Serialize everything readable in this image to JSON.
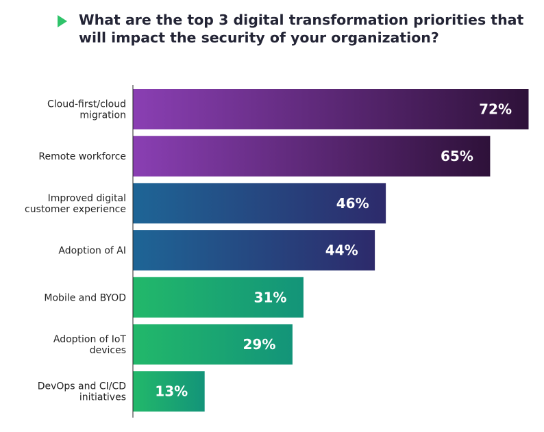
{
  "chart_data": {
    "type": "bar",
    "orientation": "horizontal",
    "title": "What are the top 3 digital transformation priorities that will impact the security of your organization?",
    "categories": [
      [
        "Cloud-first/cloud",
        "migration"
      ],
      [
        "Remote workforce"
      ],
      [
        "Improved digital",
        "customer experience"
      ],
      [
        "Adoption of AI"
      ],
      [
        "Mobile and BYOD"
      ],
      [
        "Adoption of IoT",
        "devices"
      ],
      [
        "DevOps and CI/CD",
        "initiatives"
      ]
    ],
    "values": [
      72,
      65,
      46,
      44,
      31,
      29,
      13
    ],
    "value_labels": [
      "72%",
      "65%",
      "46%",
      "44%",
      "31%",
      "29%",
      "13%"
    ],
    "xlim": [
      0,
      72
    ],
    "bar_colors": [
      [
        "#8a3fb3",
        "#2e1139"
      ],
      [
        "#8a3fb3",
        "#2e1139"
      ],
      [
        "#1e6596",
        "#2d2a6b"
      ],
      [
        "#1e6596",
        "#2d2a6b"
      ],
      [
        "#22b86a",
        "#139479"
      ],
      [
        "#22b86a",
        "#139479"
      ],
      [
        "#22b86a",
        "#139479"
      ]
    ],
    "icon": "play-triangle-icon",
    "accent_color": "#2fc36a"
  }
}
